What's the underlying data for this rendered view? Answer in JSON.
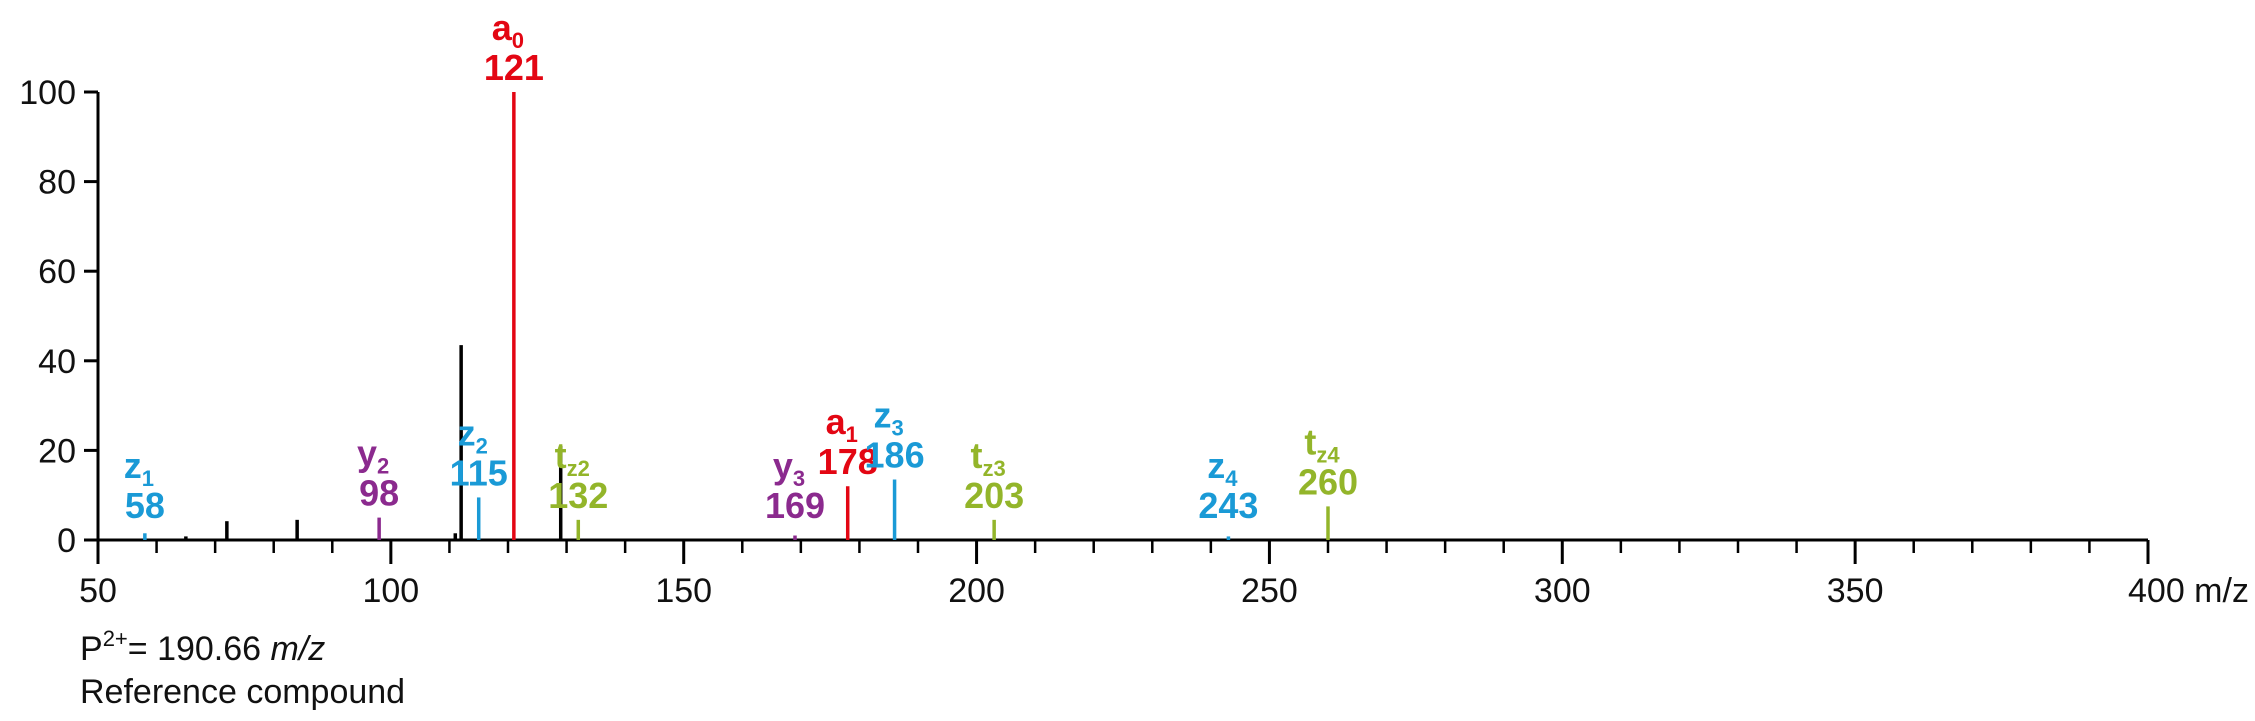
{
  "chart_data": {
    "type": "bar",
    "xlim": [
      50,
      400
    ],
    "ylim": [
      0,
      100
    ],
    "x_unit": "m/z",
    "x_ticks_major": [
      50,
      100,
      150,
      200,
      250,
      300,
      350,
      400
    ],
    "x_tick_labels": [
      "50",
      "100",
      "150",
      "200",
      "250",
      "300",
      "350",
      "400 m/z"
    ],
    "x_minor_step": 10,
    "y_ticks": [
      0,
      20,
      40,
      60,
      80,
      100
    ],
    "y_tick_labels": [
      "0",
      "20",
      "40",
      "60",
      "80",
      "100"
    ],
    "colors": {
      "unlabeled": "#000000",
      "a": "#e30613",
      "z": "#1a9ad6",
      "y": "#8b2a8e",
      "t": "#93b52a"
    },
    "peaks": [
      {
        "x": 58,
        "y": 1.5,
        "group": "z",
        "ion": "z",
        "sub": "1",
        "mz_label": "58"
      },
      {
        "x": 65,
        "y": 0.8,
        "group": "unlabeled"
      },
      {
        "x": 72,
        "y": 4.2,
        "group": "unlabeled"
      },
      {
        "x": 84,
        "y": 4.5,
        "group": "unlabeled"
      },
      {
        "x": 98,
        "y": 5,
        "group": "y",
        "ion": "y",
        "sub": "2",
        "mz_label": "98"
      },
      {
        "x": 111,
        "y": 1.5,
        "group": "unlabeled"
      },
      {
        "x": 112,
        "y": 43.5,
        "group": "unlabeled"
      },
      {
        "x": 115,
        "y": 9.5,
        "group": "z",
        "ion": "z",
        "sub": "2",
        "mz_label": "115"
      },
      {
        "x": 121,
        "y": 100,
        "group": "a",
        "ion": "a",
        "sub": "0",
        "mz_label": "121"
      },
      {
        "x": 129,
        "y": 21,
        "group": "unlabeled"
      },
      {
        "x": 132,
        "y": 4.5,
        "group": "t",
        "ion": "t",
        "sub": "z2",
        "mz_label": "132"
      },
      {
        "x": 169,
        "y": 1,
        "group": "y",
        "ion": "y",
        "sub": "3",
        "mz_label": "169"
      },
      {
        "x": 178,
        "y": 12,
        "group": "a",
        "ion": "a",
        "sub": "1",
        "mz_label": "178"
      },
      {
        "x": 186,
        "y": 13.5,
        "group": "z",
        "ion": "z",
        "sub": "3",
        "mz_label": "186"
      },
      {
        "x": 203,
        "y": 4.5,
        "group": "t",
        "ion": "t",
        "sub": "z3",
        "mz_label": "203"
      },
      {
        "x": 243,
        "y": 0.8,
        "group": "z",
        "ion": "z",
        "sub": "4",
        "mz_label": "243"
      },
      {
        "x": 260,
        "y": 7.5,
        "group": "t",
        "ion": "t",
        "sub": "z4",
        "mz_label": "260"
      }
    ]
  },
  "caption": {
    "precursor_prefix": "P",
    "precursor_charge": "2+",
    "precursor_value": "= 190.66 ",
    "precursor_unit": "m/z",
    "compound": "Reference compound"
  }
}
